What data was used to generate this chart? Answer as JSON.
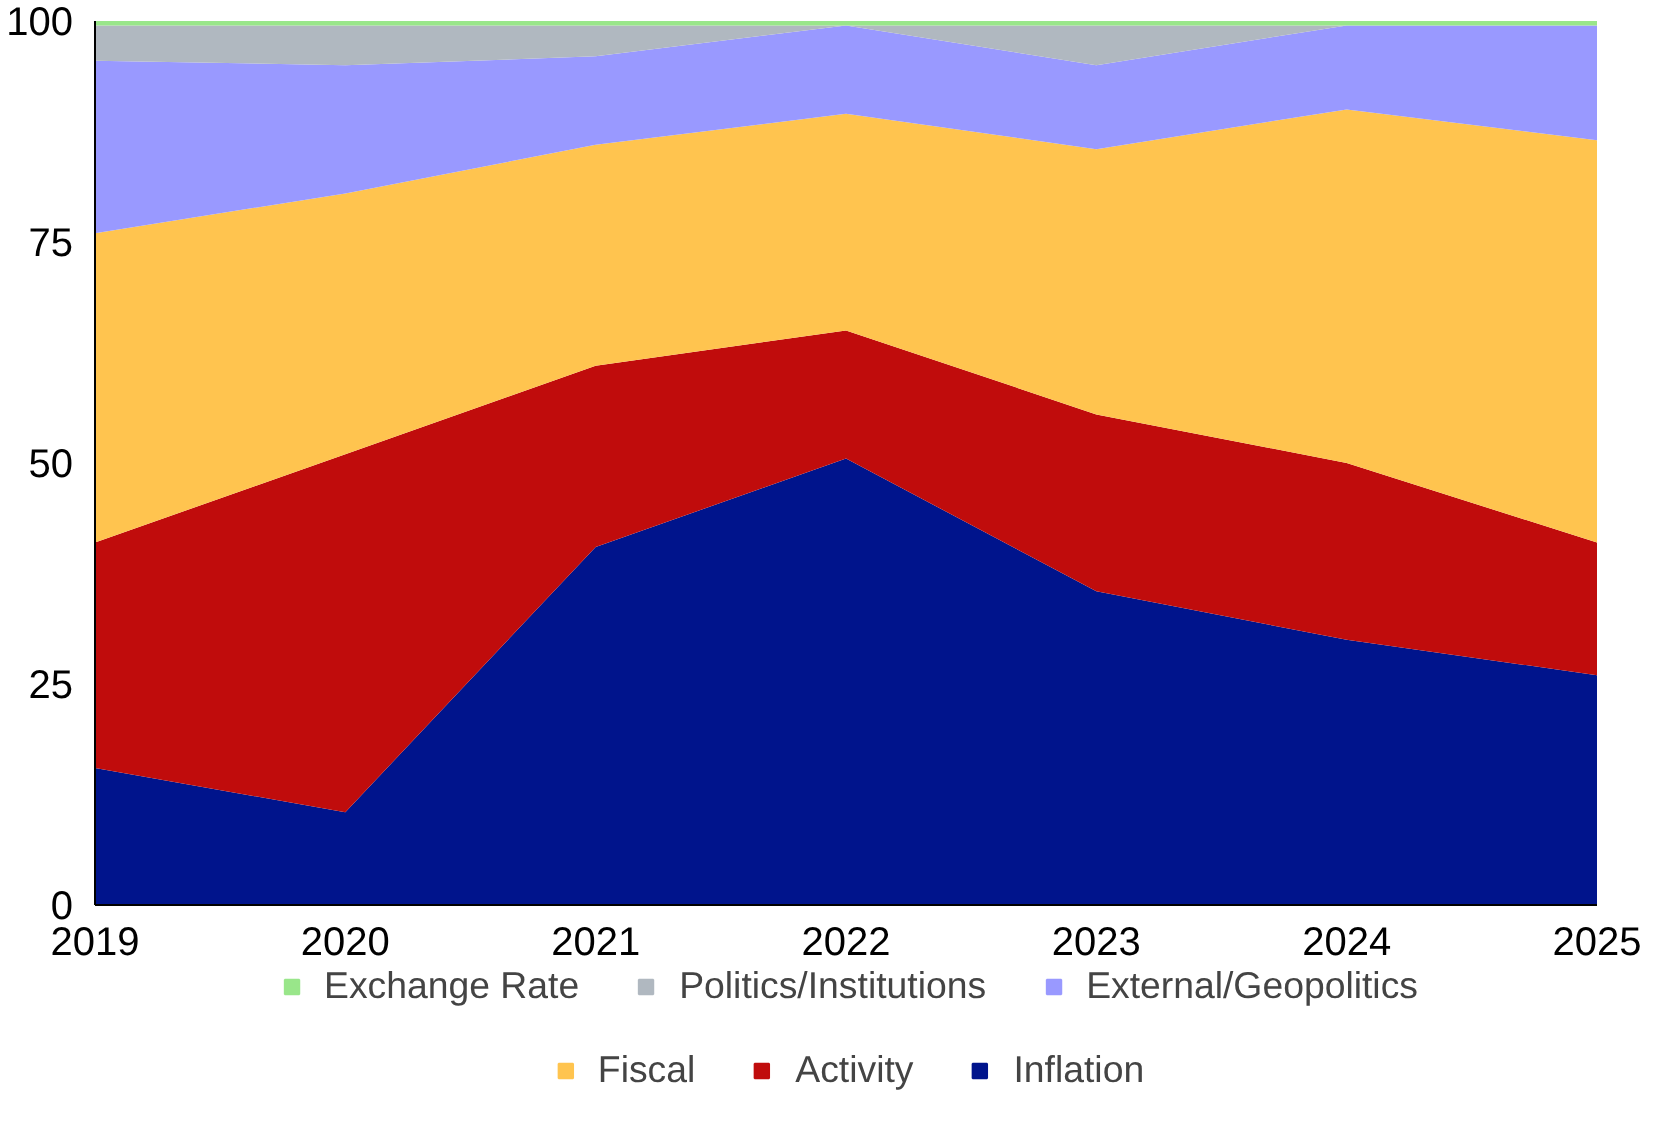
{
  "chart_data": {
    "type": "area",
    "stacked": true,
    "x": [
      2019,
      2020,
      2021,
      2022,
      2023,
      2024,
      2025
    ],
    "xlim": [
      2019,
      2025
    ],
    "xticks": [
      2019,
      2020,
      2021,
      2022,
      2023,
      2024,
      2025
    ],
    "ylim": [
      0,
      100
    ],
    "yticks": [
      0,
      25,
      50,
      75,
      100
    ],
    "grid": false,
    "legend": "bottom",
    "series": [
      {
        "name": "Inflation",
        "color": "#00148c",
        "values": [
          15.5,
          10.5,
          40.5,
          50.5,
          35.5,
          30,
          26
        ]
      },
      {
        "name": "Activity",
        "color": "#c00c0c",
        "values": [
          25.5,
          40.5,
          20.5,
          14.5,
          20,
          20,
          15
        ]
      },
      {
        "name": "Fiscal",
        "color": "#ffc44f",
        "values": [
          35,
          29.5,
          25,
          24.5,
          30,
          40,
          45.5
        ]
      },
      {
        "name": "External/Geopolitics",
        "color": "#9999ff",
        "values": [
          19.5,
          14.5,
          10,
          10,
          9.5,
          9.5,
          13
        ]
      },
      {
        "name": "Politics/Institutions",
        "color": "#b0b8c0",
        "values": [
          4,
          4.5,
          3.5,
          0,
          4.5,
          0,
          0
        ]
      },
      {
        "name": "Exchange Rate",
        "color": "#99e68a",
        "values": [
          0.5,
          0.5,
          0.5,
          0.5,
          0.5,
          0.5,
          0.5
        ]
      }
    ]
  }
}
